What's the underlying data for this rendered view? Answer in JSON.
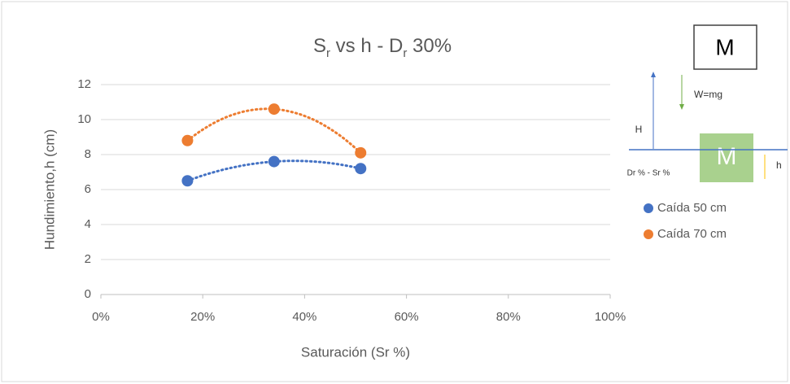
{
  "chart_data": {
    "type": "scatter",
    "title": [
      {
        "text": "S"
      },
      {
        "text": "r",
        "sub": true
      },
      {
        "text": " vs h - D"
      },
      {
        "text": "r",
        "sub": true
      },
      {
        "text": " 30%"
      }
    ],
    "x_label": "Saturación (Sr %)",
    "y_label": "Hundimiento,h (cm)",
    "xlim": [
      0,
      100
    ],
    "xticks": [
      {
        "value": 0,
        "label": "0%"
      },
      {
        "value": 20,
        "label": "20%"
      },
      {
        "value": 40,
        "label": "40%"
      },
      {
        "value": 60,
        "label": "60%"
      },
      {
        "value": 80,
        "label": "80%"
      },
      {
        "value": 100,
        "label": "100%"
      }
    ],
    "ylim": [
      0,
      12
    ],
    "yticks": [
      0,
      2,
      4,
      6,
      8,
      10,
      12
    ],
    "grid": true,
    "trendline": "polynomial",
    "series": [
      {
        "name": "Caída 50 cm",
        "color": "#4472c4",
        "x": [
          17,
          34,
          51
        ],
        "values": [
          6.5,
          7.6,
          7.2
        ]
      },
      {
        "name": "Caída 70 cm",
        "color": "#ed7d31",
        "x": [
          17,
          34,
          51
        ],
        "values": [
          8.8,
          10.6,
          8.1
        ]
      }
    ],
    "legend": "right",
    "diagram": {
      "mass_top": "M",
      "height": "H",
      "weight": "W=mg",
      "mass_bottom": "M",
      "condition": "Dr % - Sr %",
      "settlement": "h"
    }
  }
}
